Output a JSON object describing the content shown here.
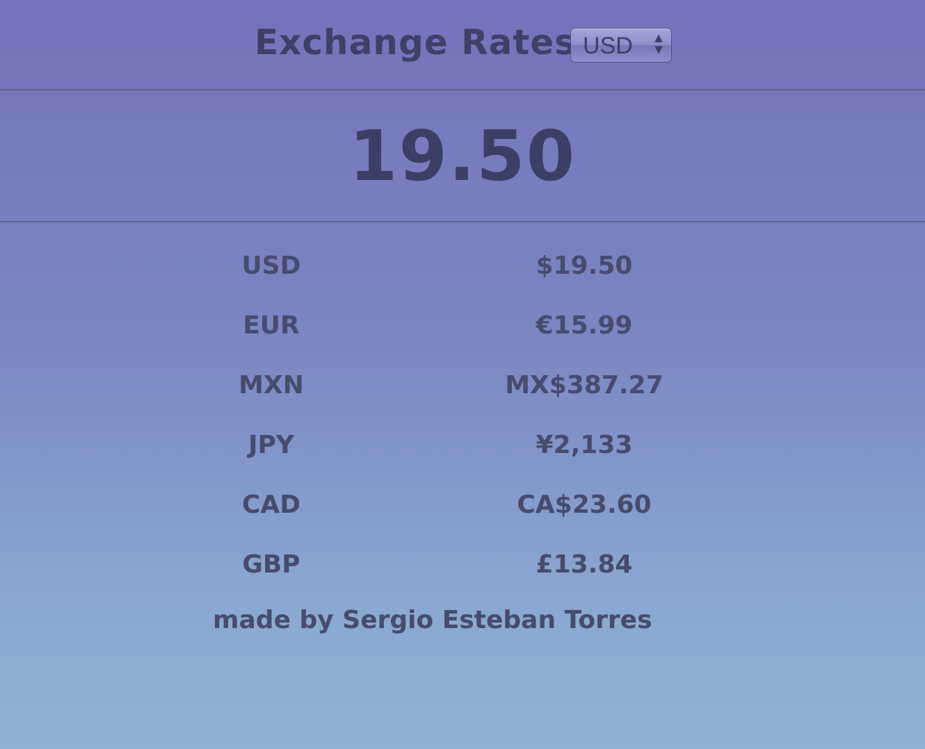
{
  "header": {
    "title": "Exchange Rates",
    "currency_select": {
      "selected": "USD",
      "arrows_icon": "up-down-arrows"
    }
  },
  "amount": "19.50",
  "rates": [
    {
      "code": "USD",
      "value": "$19.50"
    },
    {
      "code": "EUR",
      "value": "€15.99"
    },
    {
      "code": "MXN",
      "value": "MX$387.27"
    },
    {
      "code": "JPY",
      "value": "¥2,133"
    },
    {
      "code": "CAD",
      "value": "CA$23.60"
    },
    {
      "code": "GBP",
      "value": "£13.84"
    }
  ],
  "footer": {
    "credit": "made by Sergio Esteban Torres"
  },
  "colors": {
    "background_top": "#7373bb",
    "background_bottom": "#8fb1d4",
    "text": "#3e4066",
    "divider": "#62648e"
  }
}
